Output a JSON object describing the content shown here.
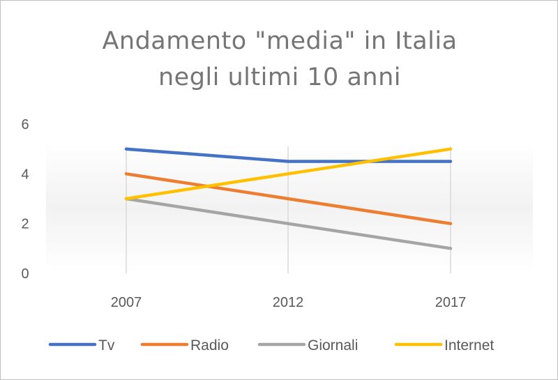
{
  "chart_data": {
    "type": "line",
    "title_lines": [
      "Andamento  \"media\"  in Italia",
      "negli  ultimi  10 anni"
    ],
    "categories": [
      "2007",
      "2012",
      "2017"
    ],
    "ylim": [
      0,
      6
    ],
    "yticks": [
      "0",
      "2",
      "4",
      "6"
    ],
    "grid": "vertical",
    "legend_position": "bottom",
    "series": [
      {
        "name": "Tv",
        "values": [
          5,
          4.5,
          4.5
        ],
        "color": "#4472C4"
      },
      {
        "name": "Radio",
        "values": [
          4,
          3,
          2
        ],
        "color": "#ED7D31"
      },
      {
        "name": "Giornali",
        "values": [
          3,
          2,
          1
        ],
        "color": "#A5A5A5"
      },
      {
        "name": "Internet",
        "values": [
          3,
          4,
          5
        ],
        "color": "#FFC000"
      }
    ]
  }
}
